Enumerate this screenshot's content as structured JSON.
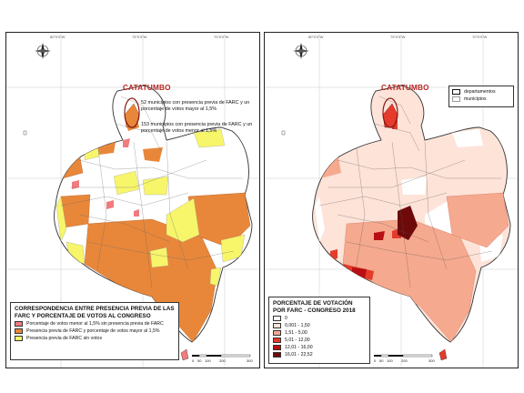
{
  "left_map": {
    "catatumbo_label": "CATATUMBO",
    "callout_high": "52 municipios con presencia previa de FARC y un porcentaje de votos mayor al 1,5%",
    "callout_low": "153 municipios con presencia previa de FARC y un porcentaje de votos menor al 1,5%",
    "legend": {
      "title": "CORRESPONDENCIA ENTRE PRESENCIA PREVIA DE LAS FARC Y PORCENTAJE DE VOTOS AL CONGRESO",
      "items": [
        {
          "label": "Porcentaje de votos menor al 1,5% sin presencia previa de FARC",
          "color": "#f07c80"
        },
        {
          "label": "Presencia previa de FARC y porcentaje de votos mayor al 1,5%",
          "color": "#e8873a"
        },
        {
          "label": "Presencia previa de FARC sin votos",
          "color": "#f7f56a"
        }
      ]
    },
    "scale_ticks": [
      "0",
      "50",
      "100",
      "200",
      "300"
    ],
    "compass_letter": "N"
  },
  "right_map": {
    "catatumbo_label": "CATATUMBO",
    "boundary_legend": [
      {
        "label": "departamentos"
      },
      {
        "label": "municipios"
      }
    ],
    "legend": {
      "title": "PORCENTAJE DE VOTACIÓN POR FARC - CONGRESO 2018",
      "items": [
        {
          "label": "0",
          "color": "#ffffff"
        },
        {
          "label": "0,001 - 1,50",
          "color": "#fde3d8"
        },
        {
          "label": "1,51 - 5,00",
          "color": "#f5a98f"
        },
        {
          "label": "5,01 - 12,00",
          "color": "#e43b2a"
        },
        {
          "label": "12,01 - 16,00",
          "color": "#b80f14"
        },
        {
          "label": "16,01 - 22,52",
          "color": "#6e0a0a"
        }
      ]
    },
    "scale_ticks": [
      "0",
      "50",
      "100",
      "200",
      "300"
    ],
    "compass_letter": "N"
  },
  "grid_labels": {
    "lon": [
      "80°0'0\"W",
      "75°0'0\"W",
      "70°0'0\"W"
    ],
    "lat": [
      "10°0'0\"N",
      "5°0'0\"N",
      "0°0'0\""
    ]
  }
}
